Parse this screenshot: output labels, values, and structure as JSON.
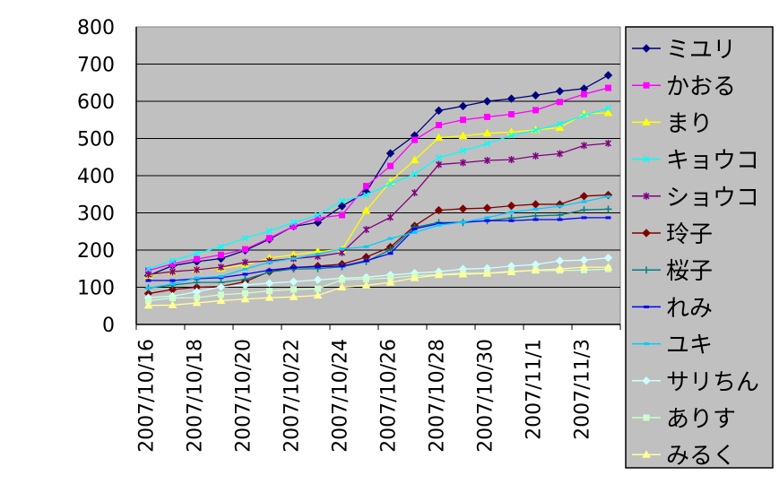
{
  "chart_data": {
    "type": "line",
    "title": "",
    "xlabel": "",
    "ylabel": "",
    "ylim": [
      0,
      800
    ],
    "yticks": [
      "0",
      "100",
      "200",
      "300",
      "400",
      "500",
      "600",
      "700",
      "800"
    ],
    "grid": true,
    "legend_position": "right",
    "x": [
      "2007/10/16",
      "2007/10/17",
      "2007/10/18",
      "2007/10/19",
      "2007/10/20",
      "2007/10/21",
      "2007/10/22",
      "2007/10/23",
      "2007/10/24",
      "2007/10/25",
      "2007/10/26",
      "2007/10/27",
      "2007/10/28",
      "2007/10/29",
      "2007/10/30",
      "2007/10/31",
      "2007/11/1",
      "2007/11/2",
      "2007/11/3",
      "2007/11/4"
    ],
    "xtick_labels": [
      "2007/10/16",
      "2007/10/18",
      "2007/10/20",
      "2007/10/22",
      "2007/10/24",
      "2007/10/26",
      "2007/10/28",
      "2007/10/30",
      "2007/11/1",
      "2007/11/3"
    ],
    "series": [
      {
        "name": "ミユリ",
        "color": "#000080",
        "marker": "diamond",
        "values": [
          131,
          158,
          169,
          177,
          199,
          229,
          264,
          274,
          318,
          356,
          460,
          508,
          575,
          587,
          600,
          607,
          616,
          627,
          634,
          670
        ]
      },
      {
        "name": "かおる",
        "color": "#FF00FF",
        "marker": "square",
        "values": [
          145,
          163,
          176,
          187,
          202,
          232,
          264,
          286,
          294,
          372,
          426,
          496,
          536,
          550,
          558,
          565,
          576,
          598,
          619,
          636
        ]
      },
      {
        "name": "まり",
        "color": "#FFFF00",
        "marker": "triangle",
        "values": [
          131,
          142,
          148,
          151,
          160,
          179,
          187,
          196,
          201,
          306,
          384,
          442,
          502,
          507,
          514,
          517,
          523,
          529,
          566,
          569
        ]
      },
      {
        "name": "キョウコ",
        "color": "#00FFFF",
        "marker": "x",
        "values": [
          149,
          171,
          191,
          209,
          232,
          251,
          274,
          294,
          332,
          348,
          378,
          404,
          448,
          467,
          486,
          508,
          522,
          539,
          562,
          581
        ]
      },
      {
        "name": "ショウコ",
        "color": "#800080",
        "marker": "star",
        "values": [
          134,
          142,
          147,
          154,
          167,
          171,
          177,
          183,
          193,
          255,
          288,
          354,
          430,
          435,
          441,
          443,
          453,
          459,
          481,
          487
        ]
      },
      {
        "name": "玲子",
        "color": "#800000",
        "marker": "diamond",
        "values": [
          83,
          94,
          100,
          102,
          115,
          142,
          153,
          157,
          162,
          181,
          208,
          265,
          307,
          311,
          313,
          319,
          323,
          323,
          345,
          348
        ]
      },
      {
        "name": "桜子",
        "color": "#008080",
        "marker": "plus",
        "values": [
          98,
          106,
          113,
          113,
          121,
          141,
          149,
          150,
          155,
          169,
          201,
          261,
          274,
          274,
          279,
          286,
          292,
          294,
          308,
          310
        ]
      },
      {
        "name": "れみ",
        "color": "#0000FF",
        "marker": "dash",
        "values": [
          118,
          118,
          123,
          126,
          135,
          146,
          153,
          155,
          157,
          171,
          191,
          257,
          271,
          275,
          279,
          279,
          282,
          282,
          287,
          287
        ]
      },
      {
        "name": "ユキ",
        "color": "#00CCFF",
        "marker": "dash",
        "values": [
          98,
          109,
          125,
          129,
          149,
          167,
          177,
          189,
          203,
          209,
          231,
          247,
          267,
          275,
          287,
          302,
          310,
          318,
          330,
          344
        ]
      },
      {
        "name": "サリちん",
        "color": "#CCFFFF",
        "marker": "diamond",
        "values": [
          72,
          76,
          88,
          101,
          106,
          111,
          115,
          120,
          124,
          127,
          133,
          138,
          142,
          149,
          151,
          157,
          161,
          171,
          173,
          179
        ]
      },
      {
        "name": "ありす",
        "color": "#CCFFCC",
        "marker": "square",
        "values": [
          64,
          71,
          72,
          80,
          84,
          90,
          94,
          96,
          120,
          122,
          125,
          131,
          134,
          138,
          138,
          143,
          145,
          145,
          146,
          149
        ]
      },
      {
        "name": "みるく",
        "color": "#FFFF99",
        "marker": "triangle",
        "values": [
          51,
          52,
          58,
          64,
          68,
          72,
          74,
          78,
          100,
          105,
          113,
          125,
          133,
          135,
          137,
          141,
          146,
          149,
          154,
          154
        ]
      }
    ]
  }
}
